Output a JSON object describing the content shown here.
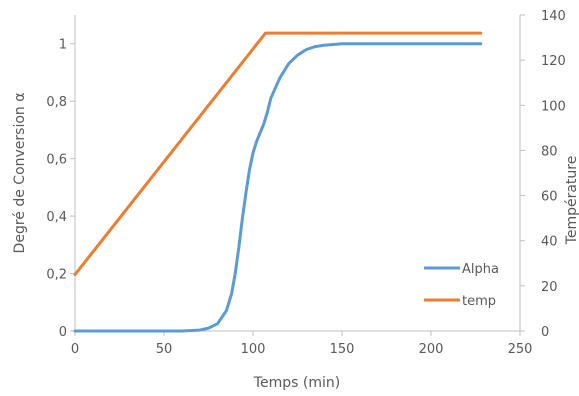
{
  "chart_data": {
    "type": "line",
    "xlabel": "Temps (min)",
    "ylabel": "Degré de Conversion α",
    "y2label": "Température",
    "xlim": [
      0,
      250
    ],
    "ylim": [
      0,
      1.1
    ],
    "y2lim": [
      0,
      140
    ],
    "x_ticks": [
      "0",
      "50",
      "100",
      "150",
      "200",
      "250"
    ],
    "y_ticks": [
      "0",
      "0,2",
      "0,4",
      "0,6",
      "0,8",
      "1"
    ],
    "y2_ticks": [
      "0",
      "20",
      "40",
      "60",
      "80",
      "100",
      "120",
      "140"
    ],
    "grid": false,
    "legend_position": "bottom-right",
    "series": [
      {
        "name": "Alpha",
        "axis": "left",
        "color": "#5b9bd5",
        "x": [
          0,
          60,
          70,
          75,
          80,
          85,
          88,
          90,
          92,
          94,
          96,
          98,
          100,
          102,
          104,
          106,
          108,
          110,
          115,
          120,
          125,
          130,
          135,
          140,
          150,
          160,
          180,
          200,
          228
        ],
        "y": [
          0,
          0,
          0.003,
          0.01,
          0.025,
          0.07,
          0.13,
          0.2,
          0.29,
          0.39,
          0.48,
          0.56,
          0.62,
          0.66,
          0.69,
          0.72,
          0.76,
          0.81,
          0.88,
          0.93,
          0.96,
          0.98,
          0.99,
          0.995,
          1.0,
          1.0,
          1.0,
          1.0,
          1.0
        ]
      },
      {
        "name": "temp",
        "axis": "right",
        "color": "#ed7d31",
        "x": [
          0,
          107,
          228
        ],
        "y": [
          25,
          132,
          132
        ]
      }
    ]
  }
}
